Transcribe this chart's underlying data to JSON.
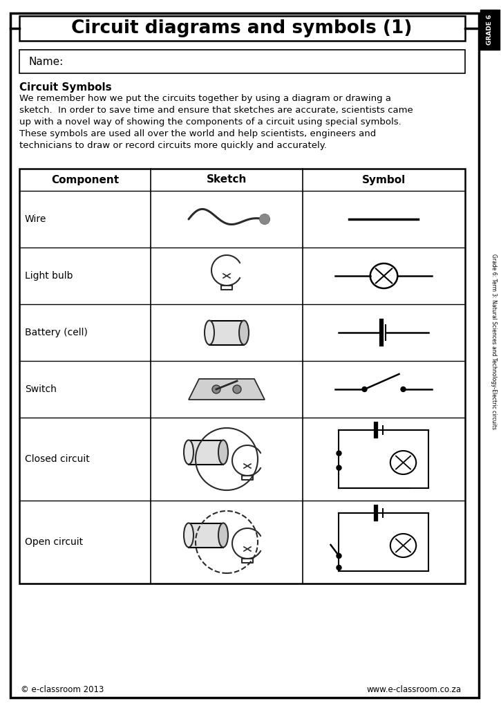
{
  "title": "Circuit diagrams and symbols (1)",
  "grade_label": "GRADE 6",
  "side_label": "Grade 6: Term 3: Natural Sciences and Technology-Electric circuits",
  "name_label": "Name:",
  "section_title": "Circuit Symbols",
  "body_text_lines": [
    "We remember how we put the circuits together by using a diagram or drawing a",
    "sketch.  In order to save time and ensure that sketches are accurate, scientists came",
    "up with a novel way of showing the components of a circuit using special symbols.",
    "These symbols are used all over the world and help scientists, engineers and",
    "technicians to draw or record circuits more quickly and accurately."
  ],
  "table_headers": [
    "Component",
    "Sketch",
    "Symbol"
  ],
  "components": [
    "Wire",
    "Light bulb",
    "Battery (cell)",
    "Switch",
    "Closed circuit",
    "Open circuit"
  ],
  "footer_left": "© e-classroom 2013",
  "footer_right": "www.e-classroom.co.za",
  "bg_color": "#ffffff",
  "text_color": "#000000"
}
